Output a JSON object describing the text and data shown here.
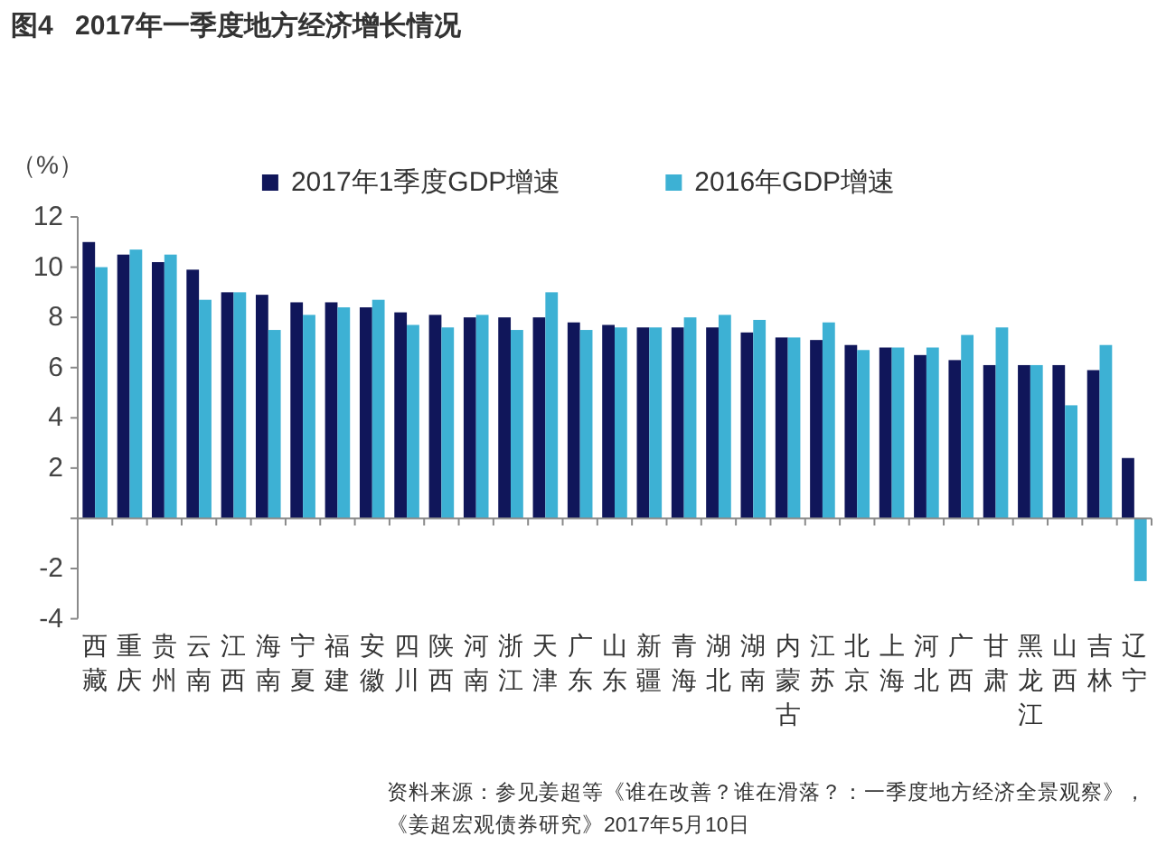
{
  "chart_data": {
    "type": "bar",
    "title": "图4 2017年一季度地方经济增长情况",
    "ylabel": "（%）",
    "categories": [
      "西藏",
      "重庆",
      "贵州",
      "云南",
      "江西",
      "海南",
      "宁夏",
      "福建",
      "安徽",
      "四川",
      "陕西",
      "河南",
      "浙江",
      "天津",
      "广东",
      "山东",
      "新疆",
      "青海",
      "湖北",
      "湖南",
      "内蒙古",
      "江苏",
      "北京",
      "上海",
      "河北",
      "广西",
      "甘肃",
      "黑龙江",
      "山西",
      "吉林",
      "辽宁"
    ],
    "series": [
      {
        "name": "2017年1季度GDP增速",
        "color": "#10165a",
        "values": [
          11.0,
          10.5,
          10.2,
          9.9,
          9.0,
          8.9,
          8.6,
          8.6,
          8.4,
          8.2,
          8.1,
          8.0,
          8.0,
          8.0,
          7.8,
          7.7,
          7.6,
          7.6,
          7.6,
          7.4,
          7.2,
          7.1,
          6.9,
          6.8,
          6.5,
          6.3,
          6.1,
          6.1,
          6.1,
          5.9,
          2.4
        ]
      },
      {
        "name": "2016年GDP增速",
        "color": "#3db1d4",
        "values": [
          10.0,
          10.7,
          10.5,
          8.7,
          9.0,
          7.5,
          8.1,
          8.4,
          8.7,
          7.7,
          7.6,
          8.1,
          7.5,
          9.0,
          7.5,
          7.6,
          7.6,
          8.0,
          8.1,
          7.9,
          7.2,
          7.8,
          6.7,
          6.8,
          6.8,
          7.3,
          7.6,
          6.1,
          4.5,
          6.9,
          -2.5
        ]
      }
    ],
    "ylim": [
      -4,
      12
    ],
    "yticks": [
      -4,
      -2,
      {
        "value": 0,
        "label": null
      },
      2,
      4,
      6,
      8,
      10,
      12
    ],
    "legend": "top",
    "annotations": [
      "资料来源：参见姜超等《谁在改善？谁在滑落？：一季度地方经济全景观察》，",
      "《姜超宏观债券研究》2017年5月10日"
    ]
  }
}
